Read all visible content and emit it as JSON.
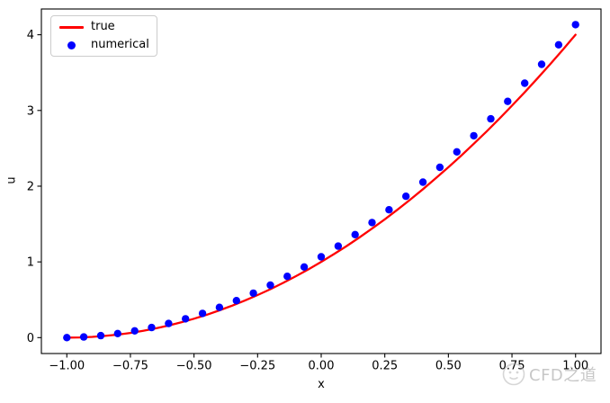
{
  "figure": {
    "background": "#ffffff",
    "watermark": {
      "text": "CFD之道",
      "color": "#9a9a9a",
      "logo_icon": "doodle-face-circle-icon"
    }
  },
  "chart_data": {
    "type": "line+scatter",
    "title": "",
    "xlabel": "x",
    "ylabel": "u",
    "xlim": [
      -1.1,
      1.1
    ],
    "ylim": [
      -0.21,
      4.34
    ],
    "grid": false,
    "frame_color": "#000000",
    "x_ticks": {
      "values": [
        -1.0,
        -0.75,
        -0.5,
        -0.25,
        0.0,
        0.25,
        0.5,
        0.75,
        1.0
      ],
      "labels": [
        "−1.00",
        "−0.75",
        "−0.50",
        "−0.25",
        "0.00",
        "0.25",
        "0.50",
        "0.75",
        "1.00"
      ]
    },
    "y_ticks": {
      "values": [
        0,
        1,
        2,
        3,
        4
      ],
      "labels": [
        "0",
        "1",
        "2",
        "3",
        "4"
      ]
    },
    "legend": {
      "position": "upper-left",
      "entries": [
        {
          "label": "true",
          "type": "line",
          "color": "#ff0000"
        },
        {
          "label": "numerical",
          "type": "marker",
          "color": "#0000ff"
        }
      ]
    },
    "series": [
      {
        "name": "true",
        "type": "line",
        "color": "#ff0000",
        "linewidth": 2.3,
        "x": [
          -1.0,
          -0.95,
          -0.9,
          -0.85,
          -0.8,
          -0.75,
          -0.7,
          -0.65,
          -0.6,
          -0.55,
          -0.5,
          -0.45,
          -0.4,
          -0.35,
          -0.3,
          -0.25,
          -0.2,
          -0.15,
          -0.1,
          -0.05,
          0.0,
          0.05,
          0.1,
          0.15,
          0.2,
          0.25,
          0.3,
          0.35,
          0.4,
          0.45,
          0.5,
          0.55,
          0.6,
          0.65,
          0.7,
          0.75,
          0.8,
          0.85,
          0.9,
          0.95,
          1.0
        ],
        "y": [
          0.0,
          0.0025,
          0.01,
          0.0225,
          0.04,
          0.0625,
          0.09,
          0.1225,
          0.16,
          0.2025,
          0.25,
          0.3025,
          0.36,
          0.4225,
          0.49,
          0.5625,
          0.64,
          0.7225,
          0.81,
          0.9025,
          1.0,
          1.1025,
          1.21,
          1.3225,
          1.44,
          1.5625,
          1.69,
          1.8225,
          1.96,
          2.1025,
          2.25,
          2.4025,
          2.56,
          2.7225,
          2.89,
          3.0625,
          3.24,
          3.4225,
          3.61,
          3.8025,
          4.0
        ]
      },
      {
        "name": "numerical",
        "type": "scatter",
        "color": "#0000ff",
        "marker_radius": 4.2,
        "x": [
          -1.0,
          -0.9333,
          -0.8667,
          -0.8,
          -0.7333,
          -0.6667,
          -0.6,
          -0.5333,
          -0.4667,
          -0.4,
          -0.3333,
          -0.2667,
          -0.2,
          -0.1333,
          -0.0667,
          0.0,
          0.0667,
          0.1333,
          0.2,
          0.2667,
          0.3333,
          0.4,
          0.4667,
          0.5333,
          0.6,
          0.6667,
          0.7333,
          0.8,
          0.8667,
          0.9333,
          1.0
        ],
        "y": [
          0.0,
          0.0089,
          0.0267,
          0.0533,
          0.0889,
          0.1333,
          0.1867,
          0.2489,
          0.32,
          0.4,
          0.4889,
          0.5867,
          0.6933,
          0.8089,
          0.9333,
          1.0667,
          1.2089,
          1.36,
          1.52,
          1.6889,
          1.8667,
          2.0533,
          2.2489,
          2.4533,
          2.6667,
          2.8889,
          3.12,
          3.36,
          3.6089,
          3.8667,
          4.1333
        ]
      }
    ]
  }
}
